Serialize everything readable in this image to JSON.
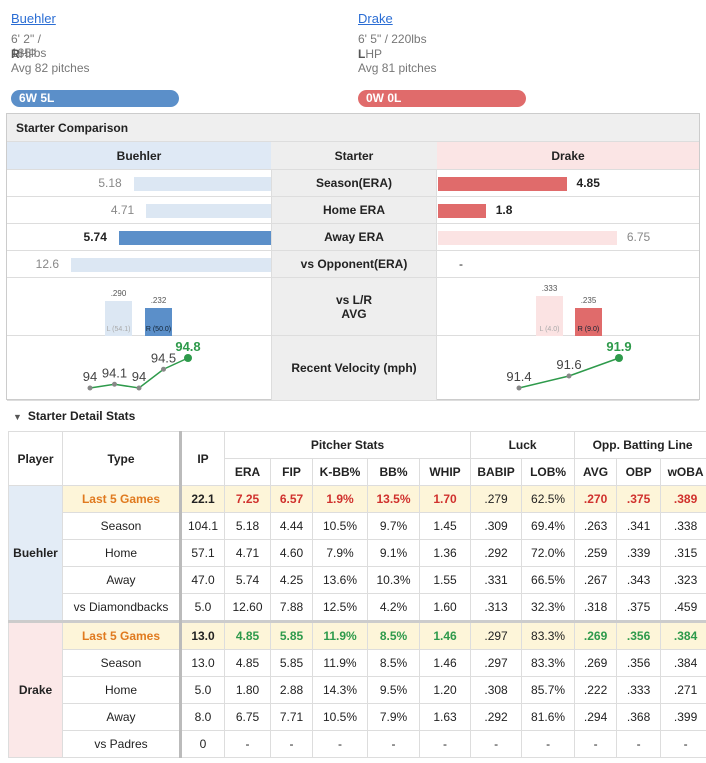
{
  "pitchers": [
    {
      "name": "Buehler",
      "size": "6' 2\" / 185lbs",
      "hand": "R",
      "hand_rest": "HP",
      "pitches": "Avg 82 pitches",
      "record": "6W 5L"
    },
    {
      "name": "Drake",
      "size": "6' 5\" / 220lbs",
      "hand": "L",
      "hand_rest": "HP",
      "pitches": "Avg 81 pitches",
      "record": "0W 0L"
    }
  ],
  "comparison": {
    "title": "Starter Comparison",
    "headers": [
      "Buehler",
      "Starter",
      "Drake"
    ],
    "rows": [
      {
        "label": "Season(ERA)",
        "left": 5.18,
        "right": 4.85
      },
      {
        "label": "Home ERA",
        "left": 4.71,
        "right": 1.8
      },
      {
        "label": "Away ERA",
        "left": 5.74,
        "right": 6.75
      },
      {
        "label": "vs Opponent(ERA)",
        "left": 12.6,
        "right": "-"
      }
    ],
    "split": {
      "label": "vs L/R\nAVG",
      "left": [
        {
          "value": 0.29,
          "label": ".290",
          "sub": "L (54.1)"
        },
        {
          "value": 0.232,
          "label": ".232",
          "sub": "R (50.0)"
        }
      ],
      "right": [
        {
          "value": 0.333,
          "label": ".333",
          "sub": "L (4.0)"
        },
        {
          "value": 0.235,
          "label": ".235",
          "sub": "R (9.0)"
        }
      ]
    },
    "velocity": {
      "label": "Recent Velocity (mph)",
      "left": [
        94,
        94.1,
        94,
        94.5,
        94.8
      ],
      "right": [
        91.4,
        91.6,
        91.9
      ]
    }
  },
  "detail": {
    "title": "Starter Detail Stats",
    "head": [
      "Player",
      "Type",
      "IP"
    ],
    "groups": [
      {
        "name": "Pitcher Stats",
        "columns": [
          "ERA",
          "FIP",
          "K-BB%",
          "BB%",
          "WHIP"
        ]
      },
      {
        "name": "Luck",
        "columns": [
          "BABIP",
          "LOB%"
        ]
      },
      {
        "name": "Opp. Batting Line",
        "columns": [
          "AVG",
          "OBP",
          "wOBA"
        ]
      }
    ],
    "players": [
      {
        "name": "Buehler",
        "rows": [
          {
            "type": "Last 5 Games",
            "stats": [
              "22.1",
              "7.25",
              "6.57",
              "1.9%",
              "13.5%",
              "1.70",
              ".279",
              "62.5%",
              ".270",
              ".375",
              ".389"
            ]
          },
          {
            "type": "Season",
            "stats": [
              "104.1",
              "5.18",
              "4.44",
              "10.5%",
              "9.7%",
              "1.45",
              ".309",
              "69.4%",
              ".263",
              ".341",
              ".338"
            ]
          },
          {
            "type": "Home",
            "stats": [
              "57.1",
              "4.71",
              "4.60",
              "7.9%",
              "9.1%",
              "1.36",
              ".292",
              "72.0%",
              ".259",
              ".339",
              ".315"
            ]
          },
          {
            "type": "Away",
            "stats": [
              "47.0",
              "5.74",
              "4.25",
              "13.6%",
              "10.3%",
              "1.55",
              ".331",
              "66.5%",
              ".267",
              ".343",
              ".323"
            ]
          },
          {
            "type": "vs Diamondbacks",
            "stats": [
              "5.0",
              "12.60",
              "7.88",
              "12.5%",
              "4.2%",
              "1.60",
              ".313",
              "32.3%",
              ".318",
              ".375",
              ".459"
            ]
          }
        ]
      },
      {
        "name": "Drake",
        "rows": [
          {
            "type": "Last 5 Games",
            "stats": [
              "13.0",
              "4.85",
              "5.85",
              "11.9%",
              "8.5%",
              "1.46",
              ".297",
              "83.3%",
              ".269",
              ".356",
              ".384"
            ]
          },
          {
            "type": "Season",
            "stats": [
              "13.0",
              "4.85",
              "5.85",
              "11.9%",
              "8.5%",
              "1.46",
              ".297",
              "83.3%",
              ".269",
              ".356",
              ".384"
            ]
          },
          {
            "type": "Home",
            "stats": [
              "5.0",
              "1.80",
              "2.88",
              "14.3%",
              "9.5%",
              "1.20",
              ".308",
              "85.7%",
              ".222",
              ".333",
              ".271"
            ]
          },
          {
            "type": "Away",
            "stats": [
              "8.0",
              "6.75",
              "7.71",
              "10.5%",
              "7.9%",
              "1.63",
              ".292",
              "81.6%",
              ".294",
              ".368",
              ".399"
            ]
          },
          {
            "type": "vs Padres",
            "stats": [
              "0",
              "-",
              "-",
              "-",
              "-",
              "-",
              "-",
              "-",
              "-",
              "-",
              "-"
            ]
          }
        ]
      }
    ]
  }
}
